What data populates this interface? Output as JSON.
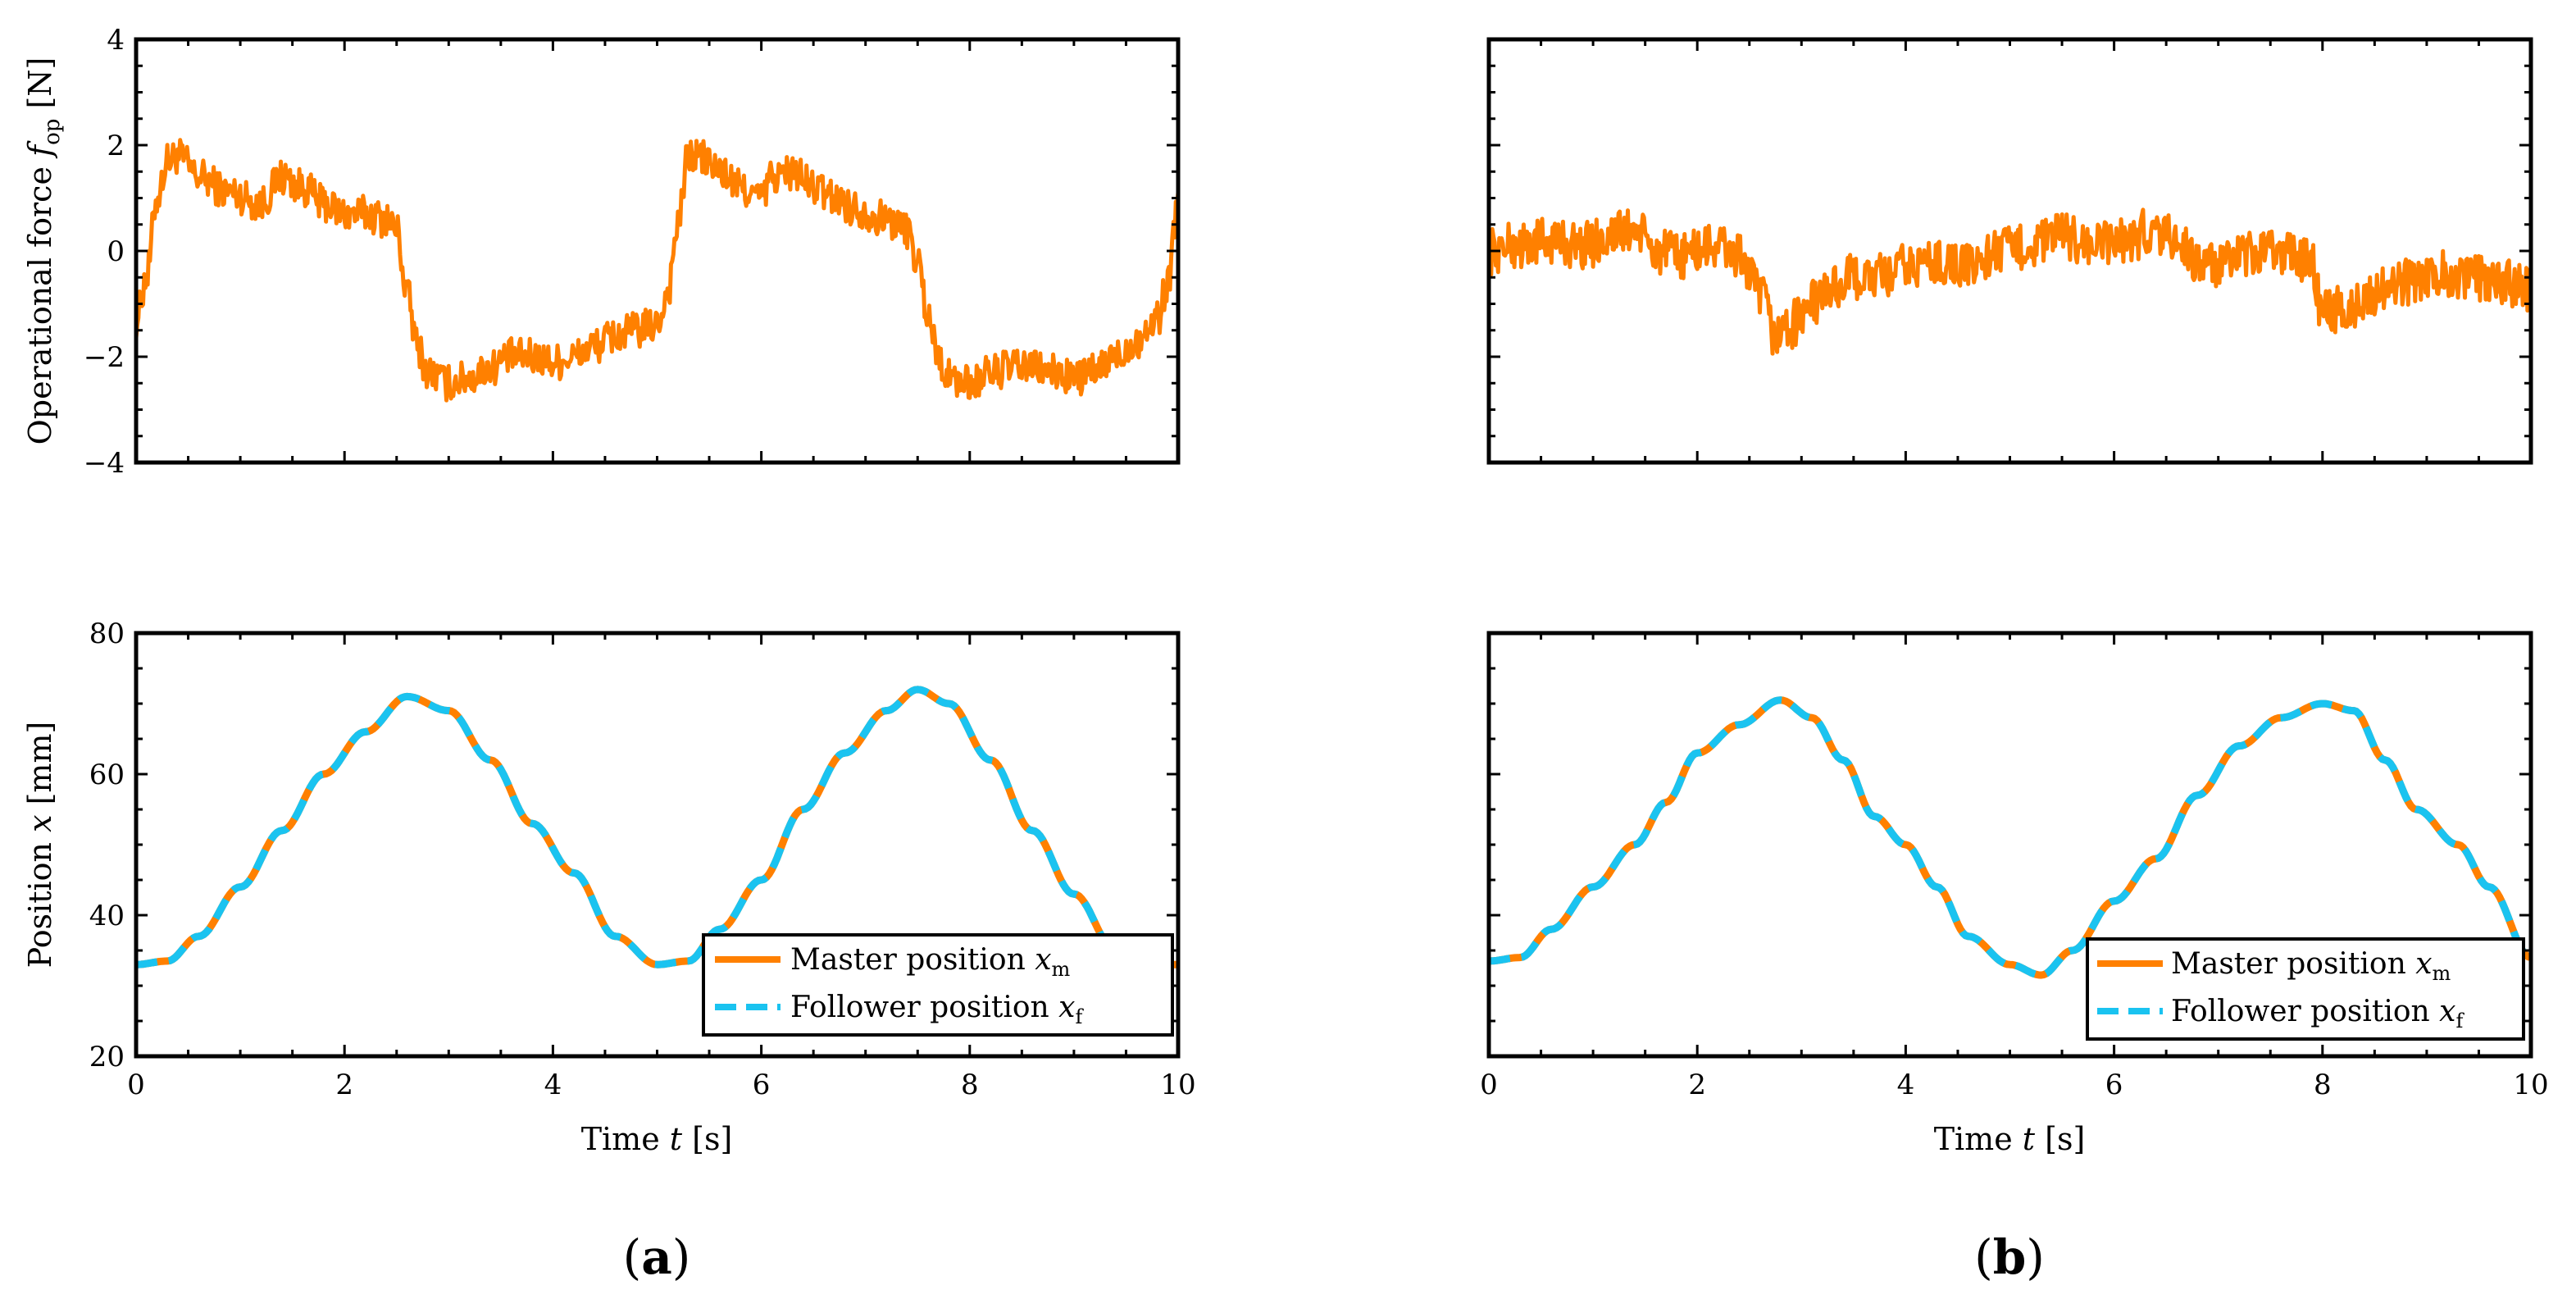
{
  "colors": {
    "master": "#FF8000",
    "follower": "#1AC3F0",
    "force": "#FF8000",
    "axis": "#000000"
  },
  "panels": {
    "a": {
      "label_open": "(",
      "label_letter": "a",
      "label_close": ")"
    },
    "b": {
      "label_open": "(",
      "label_letter": "b",
      "label_close": ")"
    }
  },
  "axis_text": {
    "force_ylabel": {
      "main": "Operational force ",
      "var": "f",
      "sub": "op",
      "unit": " [N]"
    },
    "position_ylabel": {
      "main": "Position ",
      "var": "x",
      "unit": " [mm]"
    },
    "xlabel": {
      "main": "Time ",
      "var": "t",
      "unit": " [s]"
    }
  },
  "legend": {
    "master": {
      "text": "Master position ",
      "var": "x",
      "sub": "m"
    },
    "follower": {
      "text": "Follower position ",
      "var": "x",
      "sub": "f"
    }
  },
  "chart_data": [
    {
      "id": "a-force",
      "type": "line",
      "panel": "a",
      "row": "top",
      "xlim": [
        0,
        10
      ],
      "ylim": [
        -4,
        4
      ],
      "xticks": [
        0,
        2,
        4,
        6,
        8,
        10
      ],
      "yticks": [
        -4,
        -2,
        0,
        2,
        4
      ],
      "ytick_labels": [
        "−4",
        "−2",
        "0",
        "2",
        "4"
      ],
      "show_xtick_labels": false,
      "show_ytick_labels": true,
      "series": [
        {
          "name": "Operational force",
          "color": "#FF8000",
          "noise": 0.35,
          "points": [
            [
              0,
              -1.3
            ],
            [
              0.1,
              -0.5
            ],
            [
              0.2,
              1.0
            ],
            [
              0.3,
              1.7
            ],
            [
              0.4,
              1.8
            ],
            [
              0.6,
              1.4
            ],
            [
              0.9,
              1.1
            ],
            [
              1.2,
              0.9
            ],
            [
              1.4,
              1.4
            ],
            [
              1.6,
              1.2
            ],
            [
              1.8,
              0.9
            ],
            [
              2.0,
              0.7
            ],
            [
              2.2,
              0.7
            ],
            [
              2.4,
              0.6
            ],
            [
              2.5,
              0.4
            ],
            [
              2.6,
              -0.8
            ],
            [
              2.7,
              -1.8
            ],
            [
              2.8,
              -2.3
            ],
            [
              3.0,
              -2.5
            ],
            [
              3.2,
              -2.4
            ],
            [
              3.4,
              -2.2
            ],
            [
              3.6,
              -2.0
            ],
            [
              3.8,
              -2.0
            ],
            [
              4.0,
              -2.1
            ],
            [
              4.2,
              -2.0
            ],
            [
              4.4,
              -1.8
            ],
            [
              4.6,
              -1.6
            ],
            [
              4.8,
              -1.5
            ],
            [
              5.0,
              -1.4
            ],
            [
              5.1,
              -0.8
            ],
            [
              5.2,
              0.5
            ],
            [
              5.3,
              1.8
            ],
            [
              5.4,
              1.8
            ],
            [
              5.6,
              1.5
            ],
            [
              5.8,
              1.2
            ],
            [
              6.0,
              1.0
            ],
            [
              6.1,
              1.4
            ],
            [
              6.3,
              1.5
            ],
            [
              6.5,
              1.2
            ],
            [
              6.7,
              1.0
            ],
            [
              6.9,
              0.8
            ],
            [
              7.2,
              0.6
            ],
            [
              7.4,
              0.4
            ],
            [
              7.5,
              -0.2
            ],
            [
              7.6,
              -1.2
            ],
            [
              7.7,
              -2.0
            ],
            [
              7.8,
              -2.4
            ],
            [
              8.0,
              -2.5
            ],
            [
              8.2,
              -2.3
            ],
            [
              8.4,
              -2.2
            ],
            [
              8.6,
              -2.2
            ],
            [
              8.8,
              -2.3
            ],
            [
              9.0,
              -2.4
            ],
            [
              9.2,
              -2.3
            ],
            [
              9.4,
              -2.0
            ],
            [
              9.6,
              -1.7
            ],
            [
              9.8,
              -1.3
            ],
            [
              9.9,
              -0.6
            ],
            [
              10.0,
              1.0
            ]
          ]
        }
      ]
    },
    {
      "id": "a-position",
      "type": "line",
      "panel": "a",
      "row": "bottom",
      "xlim": [
        0,
        10
      ],
      "ylim": [
        20,
        80
      ],
      "xticks": [
        0,
        2,
        4,
        6,
        8,
        10
      ],
      "yticks": [
        20,
        40,
        60,
        80
      ],
      "ytick_labels": [
        "20",
        "40",
        "60",
        "80"
      ],
      "xtick_labels": [
        "0",
        "2",
        "4",
        "6",
        "8",
        "10"
      ],
      "show_xtick_labels": true,
      "show_ytick_labels": true,
      "series": [
        {
          "name": "Master position",
          "color": "#FF8000",
          "dash": false,
          "points": [
            [
              0,
              33
            ],
            [
              0.3,
              33.5
            ],
            [
              0.6,
              37
            ],
            [
              1.0,
              44
            ],
            [
              1.4,
              52
            ],
            [
              1.8,
              60
            ],
            [
              2.2,
              66
            ],
            [
              2.6,
              71
            ],
            [
              3.0,
              69
            ],
            [
              3.4,
              62
            ],
            [
              3.8,
              53
            ],
            [
              4.2,
              46
            ],
            [
              4.6,
              37
            ],
            [
              5.0,
              33
            ],
            [
              5.3,
              33.5
            ],
            [
              5.6,
              38
            ],
            [
              6.0,
              45
            ],
            [
              6.4,
              55
            ],
            [
              6.8,
              63
            ],
            [
              7.2,
              69
            ],
            [
              7.5,
              72
            ],
            [
              7.8,
              70
            ],
            [
              8.2,
              62
            ],
            [
              8.6,
              52
            ],
            [
              9.0,
              43
            ],
            [
              9.4,
              35
            ],
            [
              9.7,
              33
            ],
            [
              10.0,
              33
            ]
          ]
        },
        {
          "name": "Follower position",
          "color": "#1AC3F0",
          "dash": true,
          "points": [
            [
              0,
              33
            ],
            [
              0.3,
              33.5
            ],
            [
              0.6,
              37
            ],
            [
              1.0,
              44
            ],
            [
              1.4,
              52
            ],
            [
              1.8,
              60
            ],
            [
              2.2,
              66
            ],
            [
              2.6,
              71
            ],
            [
              3.0,
              69
            ],
            [
              3.4,
              62
            ],
            [
              3.8,
              53
            ],
            [
              4.2,
              46
            ],
            [
              4.6,
              37
            ],
            [
              5.0,
              33
            ],
            [
              5.3,
              33.5
            ],
            [
              5.6,
              38
            ],
            [
              6.0,
              45
            ],
            [
              6.4,
              55
            ],
            [
              6.8,
              63
            ],
            [
              7.2,
              69
            ],
            [
              7.5,
              72
            ],
            [
              7.8,
              70
            ],
            [
              8.2,
              62
            ],
            [
              8.6,
              52
            ],
            [
              9.0,
              43
            ],
            [
              9.4,
              35
            ],
            [
              9.7,
              33
            ],
            [
              10.0,
              33
            ]
          ]
        }
      ]
    },
    {
      "id": "b-force",
      "type": "line",
      "panel": "b",
      "row": "top",
      "xlim": [
        0,
        10
      ],
      "ylim": [
        -4,
        4
      ],
      "xticks": [
        0,
        2,
        4,
        6,
        8,
        10
      ],
      "yticks": [
        -4,
        -2,
        0,
        2,
        4
      ],
      "show_xtick_labels": false,
      "show_ytick_labels": false,
      "series": [
        {
          "name": "Operational force",
          "color": "#FF8000",
          "noise": 0.45,
          "points": [
            [
              0,
              0.0
            ],
            [
              0.3,
              0.1
            ],
            [
              0.6,
              0.2
            ],
            [
              0.9,
              0.1
            ],
            [
              1.2,
              0.3
            ],
            [
              1.4,
              0.4
            ],
            [
              1.6,
              0.0
            ],
            [
              1.8,
              -0.1
            ],
            [
              2.0,
              0.0
            ],
            [
              2.2,
              0.1
            ],
            [
              2.4,
              -0.1
            ],
            [
              2.6,
              -0.8
            ],
            [
              2.75,
              -1.6
            ],
            [
              2.9,
              -1.4
            ],
            [
              3.1,
              -1.0
            ],
            [
              3.3,
              -0.7
            ],
            [
              3.5,
              -0.5
            ],
            [
              3.8,
              -0.5
            ],
            [
              4.0,
              -0.3
            ],
            [
              4.3,
              -0.2
            ],
            [
              4.6,
              -0.3
            ],
            [
              4.9,
              0.0
            ],
            [
              5.2,
              0.1
            ],
            [
              5.5,
              0.3
            ],
            [
              5.8,
              0.1
            ],
            [
              6.1,
              0.2
            ],
            [
              6.4,
              0.4
            ],
            [
              6.6,
              0.2
            ],
            [
              6.8,
              -0.2
            ],
            [
              7.0,
              -0.3
            ],
            [
              7.3,
              -0.1
            ],
            [
              7.6,
              0.0
            ],
            [
              7.9,
              -0.2
            ],
            [
              8.0,
              -1.2
            ],
            [
              8.2,
              -1.1
            ],
            [
              8.5,
              -0.8
            ],
            [
              8.8,
              -0.6
            ],
            [
              9.1,
              -0.4
            ],
            [
              9.4,
              -0.5
            ],
            [
              9.7,
              -0.6
            ],
            [
              10.0,
              -0.7
            ]
          ]
        }
      ]
    },
    {
      "id": "b-position",
      "type": "line",
      "panel": "b",
      "row": "bottom",
      "xlim": [
        0,
        10
      ],
      "ylim": [
        20,
        80
      ],
      "xticks": [
        0,
        2,
        4,
        6,
        8,
        10
      ],
      "yticks": [
        20,
        40,
        60,
        80
      ],
      "xtick_labels": [
        "0",
        "2",
        "4",
        "6",
        "8",
        "10"
      ],
      "show_xtick_labels": true,
      "show_ytick_labels": false,
      "series": [
        {
          "name": "Master position",
          "color": "#FF8000",
          "dash": false,
          "points": [
            [
              0,
              33.5
            ],
            [
              0.3,
              34
            ],
            [
              0.6,
              38
            ],
            [
              1.0,
              44
            ],
            [
              1.4,
              50
            ],
            [
              1.7,
              56
            ],
            [
              2.0,
              63
            ],
            [
              2.4,
              67
            ],
            [
              2.8,
              70.5
            ],
            [
              3.1,
              68
            ],
            [
              3.4,
              62
            ],
            [
              3.7,
              54
            ],
            [
              4.0,
              50
            ],
            [
              4.3,
              44
            ],
            [
              4.6,
              37
            ],
            [
              5.0,
              33
            ],
            [
              5.3,
              31.5
            ],
            [
              5.6,
              35
            ],
            [
              6.0,
              42
            ],
            [
              6.4,
              48
            ],
            [
              6.8,
              57
            ],
            [
              7.2,
              64
            ],
            [
              7.6,
              68
            ],
            [
              8.0,
              70
            ],
            [
              8.3,
              69
            ],
            [
              8.6,
              62
            ],
            [
              8.9,
              55
            ],
            [
              9.3,
              50
            ],
            [
              9.6,
              44
            ],
            [
              10.0,
              34
            ]
          ]
        },
        {
          "name": "Follower position",
          "color": "#1AC3F0",
          "dash": true,
          "points": [
            [
              0,
              33.5
            ],
            [
              0.3,
              34
            ],
            [
              0.6,
              38
            ],
            [
              1.0,
              44
            ],
            [
              1.4,
              50
            ],
            [
              1.7,
              56
            ],
            [
              2.0,
              63
            ],
            [
              2.4,
              67
            ],
            [
              2.8,
              70.5
            ],
            [
              3.1,
              68
            ],
            [
              3.4,
              62
            ],
            [
              3.7,
              54
            ],
            [
              4.0,
              50
            ],
            [
              4.3,
              44
            ],
            [
              4.6,
              37
            ],
            [
              5.0,
              33
            ],
            [
              5.3,
              31.5
            ],
            [
              5.6,
              35
            ],
            [
              6.0,
              42
            ],
            [
              6.4,
              48
            ],
            [
              6.8,
              57
            ],
            [
              7.2,
              64
            ],
            [
              7.6,
              68
            ],
            [
              8.0,
              70
            ],
            [
              8.3,
              69
            ],
            [
              8.6,
              62
            ],
            [
              8.9,
              55
            ],
            [
              9.3,
              50
            ],
            [
              9.6,
              44
            ],
            [
              10.0,
              34
            ]
          ]
        }
      ]
    }
  ]
}
